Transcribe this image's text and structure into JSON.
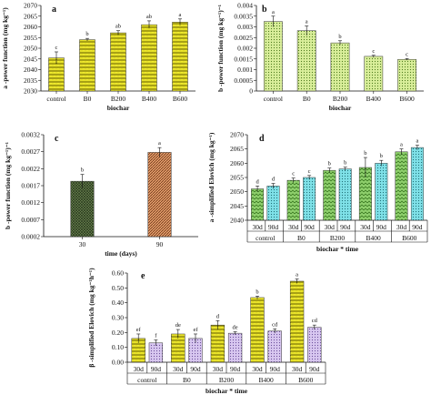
{
  "chart_data": [
    {
      "panel": "a",
      "type": "bar",
      "ylabel": "a -power function (mg kg⁻¹)",
      "xlabel": "biochar",
      "categories": [
        "control",
        "B0",
        "B200",
        "B400",
        "B600"
      ],
      "values": [
        2045.5,
        2054.0,
        2057.2,
        2061.0,
        2062.2
      ],
      "errors": [
        2.8,
        0.6,
        1.0,
        1.8,
        1.5
      ],
      "letters": [
        "c",
        "b",
        "ab",
        "ab",
        "a"
      ],
      "ylim": [
        2030,
        2070
      ],
      "yticks": [
        "2030",
        "2035",
        "2040",
        "2045",
        "2050",
        "2055",
        "2060",
        "2065",
        "2070"
      ],
      "fill": "pat-zig-yellow"
    },
    {
      "panel": "b",
      "type": "bar",
      "ylabel": "b -power function (mg kg⁻¹)⁻¹",
      "xlabel": "biochar",
      "categories": [
        "control",
        "B0",
        "B200",
        "B400",
        "B600"
      ],
      "values": [
        0.00325,
        0.00282,
        0.00225,
        0.00162,
        0.00148
      ],
      "errors": [
        0.00025,
        0.00022,
        0.0001,
        5e-05,
        4e-05
      ],
      "letters": [
        "a",
        "a",
        "b",
        "c",
        "c"
      ],
      "ylim": [
        0,
        0.004
      ],
      "yticks": [
        "0",
        "0.0005",
        "0.001",
        "0.0015",
        "0.002",
        "0.0025",
        "0.003",
        "0.0035",
        "0.004"
      ],
      "fill": "pat-dots-green"
    },
    {
      "panel": "c",
      "type": "bar",
      "ylabel": "b -power function (mg kg⁻¹)⁻¹",
      "xlabel": "time (days)",
      "categories": [
        "30",
        "90"
      ],
      "values": [
        0.00183,
        0.00268
      ],
      "errors": [
        0.0002,
        0.00014
      ],
      "letters": [
        "b",
        "a"
      ],
      "ylim": [
        0.0002,
        0.0032
      ],
      "yticks": [
        "0.0002",
        "0.0007",
        "0.0012",
        "0.0017",
        "0.0022",
        "0.0027",
        "0.0032"
      ],
      "fills": [
        "pat-dark-green",
        "pat-orange-hatch"
      ]
    },
    {
      "panel": "d",
      "type": "bar",
      "ylabel": "a -simplified Elovich (mg kg⁻¹)",
      "xlabel": "biochar * time",
      "groups": [
        "control",
        "B0",
        "B200",
        "B400",
        "B600"
      ],
      "sub_labels": [
        "30d",
        "90d"
      ],
      "series": [
        {
          "values": [
            2051.0,
            2054.0,
            2057.5,
            2058.5,
            2064.0
          ],
          "errors": [
            1.0,
            0.8,
            0.8,
            3.5,
            1.0
          ],
          "letters": [
            "d",
            "c",
            "b",
            "b",
            "a"
          ],
          "fill": "pat-green-wave"
        },
        {
          "values": [
            2052.0,
            2055.0,
            2058.0,
            2060.0,
            2065.5
          ],
          "errors": [
            0.9,
            0.7,
            0.6,
            1.0,
            0.8
          ],
          "letters": [
            "d",
            "c",
            "b",
            "b",
            "a"
          ],
          "fill": "pat-cyan-dots"
        }
      ],
      "ylim": [
        2040,
        2070
      ],
      "yticks": [
        "2040",
        "2045",
        "2050",
        "2055",
        "2060",
        "2065",
        "2070"
      ]
    },
    {
      "panel": "e",
      "type": "bar",
      "ylabel": "β -simplified Elovich (mg kg⁻¹h⁻¹)",
      "xlabel": "biochar * time",
      "groups": [
        "control",
        "B0",
        "B200",
        "B400",
        "B600"
      ],
      "sub_labels": [
        "30d",
        "90d"
      ],
      "series": [
        {
          "values": [
            0.16,
            0.19,
            0.25,
            0.435,
            0.545
          ],
          "errors": [
            0.03,
            0.03,
            0.03,
            0.01,
            0.015
          ],
          "letters": [
            "ef",
            "de",
            "d",
            "b",
            "a"
          ],
          "fill": "pat-zig-yellow"
        },
        {
          "values": [
            0.13,
            0.16,
            0.195,
            0.21,
            0.235
          ],
          "errors": [
            0.02,
            0.03,
            0.01,
            0.015,
            0.015
          ],
          "letters": [
            "f",
            "ef",
            "de",
            "cd",
            "cd"
          ],
          "fill": "pat-lilac-dots"
        }
      ],
      "ylim": [
        0,
        0.6
      ],
      "yticks": [
        "0.00",
        "0.10",
        "0.20",
        "0.30",
        "0.40",
        "0.50",
        "0.60"
      ]
    }
  ]
}
